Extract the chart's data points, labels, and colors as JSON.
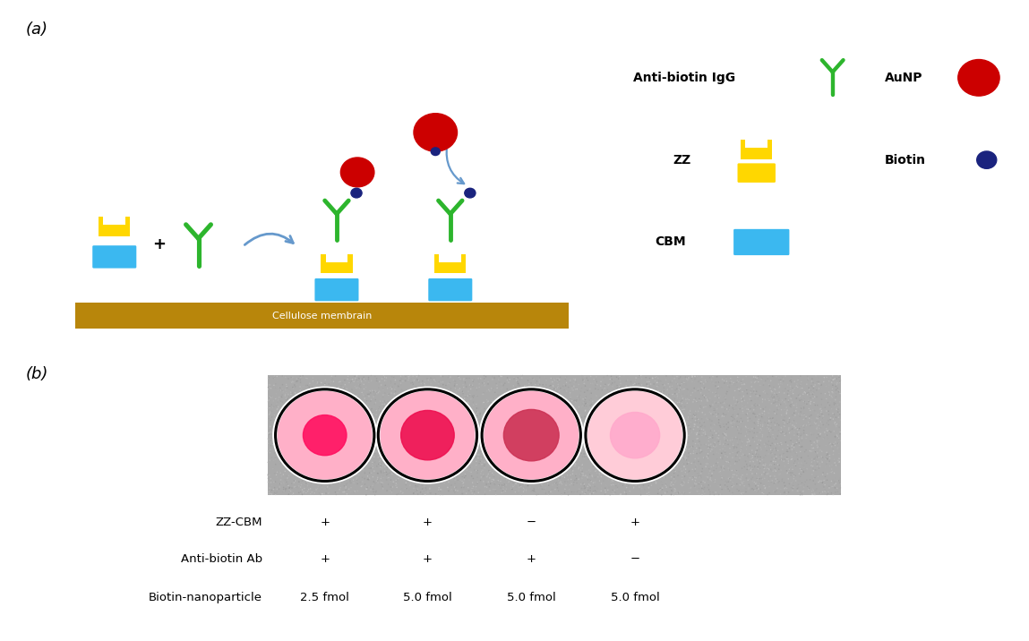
{
  "panel_a_label": "(a)",
  "panel_b_label": "(b)",
  "cellulose_label": "Cellulose membrain",
  "cellulose_color": "#B8860B",
  "cbm_color": "#3BB8F0",
  "zz_color": "#FFD700",
  "antibody_color": "#2DB52D",
  "aunp_color": "#CC0000",
  "biotin_color": "#1A237E",
  "arrow_color": "#6699CC",
  "table_labels": [
    "ZZ-CBM",
    "Anti-biotin Ab",
    "Biotin-nanoparticle"
  ],
  "table_col1": [
    "+",
    "+",
    "2.5 fmol"
  ],
  "table_col2": [
    "+",
    "+",
    "5.0 fmol"
  ],
  "table_col3": [
    "−",
    "+",
    "5.0 fmol"
  ],
  "table_col4": [
    "+",
    "−",
    "5.0 fmol"
  ],
  "background_color": "#FFFFFF"
}
